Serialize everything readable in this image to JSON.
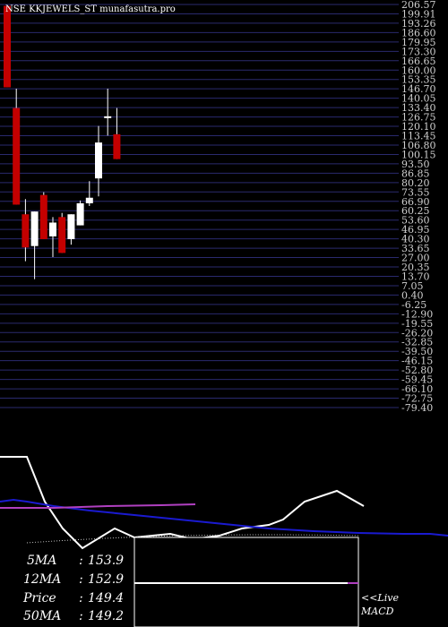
{
  "chart_data": {
    "type": "candlestick",
    "title": "NSE KKJEWELS_ST munafasutra.pro",
    "y_ticks": [
      "206.57",
      "199.91",
      "193.26",
      "186.60",
      "179.95",
      "173.30",
      "166.65",
      "160.00",
      "153.35",
      "146.70",
      "140.05",
      "133.40",
      "126.75",
      "120.10",
      "113.45",
      "106.80",
      "100.15",
      "93.50",
      "86.85",
      "80.20",
      "73.55",
      "66.90",
      "60.25",
      "53.60",
      "46.95",
      "40.30",
      "33.65",
      "27.00",
      "20.35",
      "13.70",
      "7.05",
      "0.40",
      "-6.25",
      "-12.90",
      "-19.55",
      "-26.20",
      "-32.85",
      "-39.50",
      "-46.15",
      "-52.80",
      "-59.45",
      "-66.10",
      "-72.75",
      "-79.40"
    ],
    "ylim": [
      -82,
      210
    ],
    "candles": [
      {
        "open": 209.0,
        "high": 209.0,
        "low": 150.0,
        "close": 150.0
      },
      {
        "open": 135.0,
        "high": 149.0,
        "low": 65.0,
        "close": 65.0
      },
      {
        "open": 58.0,
        "high": 69.0,
        "low": 24.0,
        "close": 34.0
      },
      {
        "open": 35.0,
        "high": 60.0,
        "low": 11.0,
        "close": 60.0
      },
      {
        "open": 72.0,
        "high": 74.0,
        "low": 40.0,
        "close": 40.0
      },
      {
        "open": 42.0,
        "high": 56.0,
        "low": 27.0,
        "close": 52.0
      },
      {
        "open": 56.0,
        "high": 59.0,
        "low": 30.0,
        "close": 30.0
      },
      {
        "open": 40.0,
        "high": 58.0,
        "low": 36.0,
        "close": 58.0
      },
      {
        "open": 50.0,
        "high": 68.0,
        "low": 50.0,
        "close": 66.0
      },
      {
        "open": 66.0,
        "high": 82.0,
        "low": 64.0,
        "close": 70.0
      },
      {
        "open": 84.0,
        "high": 122.0,
        "low": 71.0,
        "close": 110.0
      },
      {
        "open": 128.0,
        "high": 149.0,
        "low": 115.0,
        "close": 129.0
      },
      {
        "open": 116.0,
        "high": 135.0,
        "low": 98.0,
        "close": 98.0
      }
    ],
    "stats": [
      {
        "label": "5MA",
        "value": "153.9"
      },
      {
        "label": "12MA",
        "value": "152.9"
      },
      {
        "label": "Price",
        "value": "149.4"
      },
      {
        "label": "50MA",
        "value": "149.2"
      }
    ],
    "macd_label_1": "<<Live",
    "macd_label_2": "MACD",
    "colors": {
      "background": "#000000",
      "grid": "#2a2a6e",
      "bear": "#c40000",
      "bull": "#ffffff",
      "ma_white": "#ffffff",
      "ma_blue": "#1a1ad0",
      "ma_violet": "#b040c0"
    }
  }
}
